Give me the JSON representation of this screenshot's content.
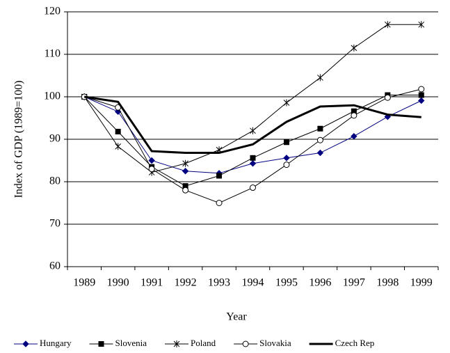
{
  "chart_data": {
    "type": "line",
    "y_label": "Index of GDP (1989=100)",
    "x_label": "Year",
    "categories": [
      "1989",
      "1990",
      "1991",
      "1992",
      "1993",
      "1994",
      "1995",
      "1996",
      "1997",
      "1998",
      "1999"
    ],
    "ylim": [
      60,
      120
    ],
    "yticks": [
      60,
      70,
      80,
      90,
      100,
      110,
      120
    ],
    "grid": true,
    "legend": "bottom",
    "series": [
      {
        "name": "Hungary",
        "color": "#000080",
        "marker": "diamond",
        "values": [
          100,
          96.5,
          85,
          82.5,
          82,
          84.3,
          85.6,
          86.8,
          90.7,
          95.3,
          99.1
        ]
      },
      {
        "name": "Slovenia",
        "color": "#000000",
        "marker": "square",
        "values": [
          100,
          91.8,
          83.5,
          79,
          81.4,
          85.6,
          89.3,
          92.5,
          96.6,
          100.4,
          100.4
        ]
      },
      {
        "name": "Poland",
        "color": "#000000",
        "marker": "asterisk",
        "values": [
          100,
          88.3,
          82.2,
          84.3,
          87.5,
          92,
          98.6,
          104.5,
          111.5,
          117,
          117
        ]
      },
      {
        "name": "Slovakia",
        "color": "#000000",
        "marker": "circle",
        "values": [
          100,
          97.5,
          83,
          78,
          75,
          78.6,
          84,
          89.8,
          95.6,
          99.8,
          101.8
        ]
      },
      {
        "name": "Czech Rep",
        "color": "#000000",
        "marker": "none",
        "values": [
          100,
          98.8,
          87.2,
          86.8,
          86.8,
          88.8,
          94.1,
          97.7,
          98,
          95.8,
          95.2
        ]
      }
    ]
  }
}
